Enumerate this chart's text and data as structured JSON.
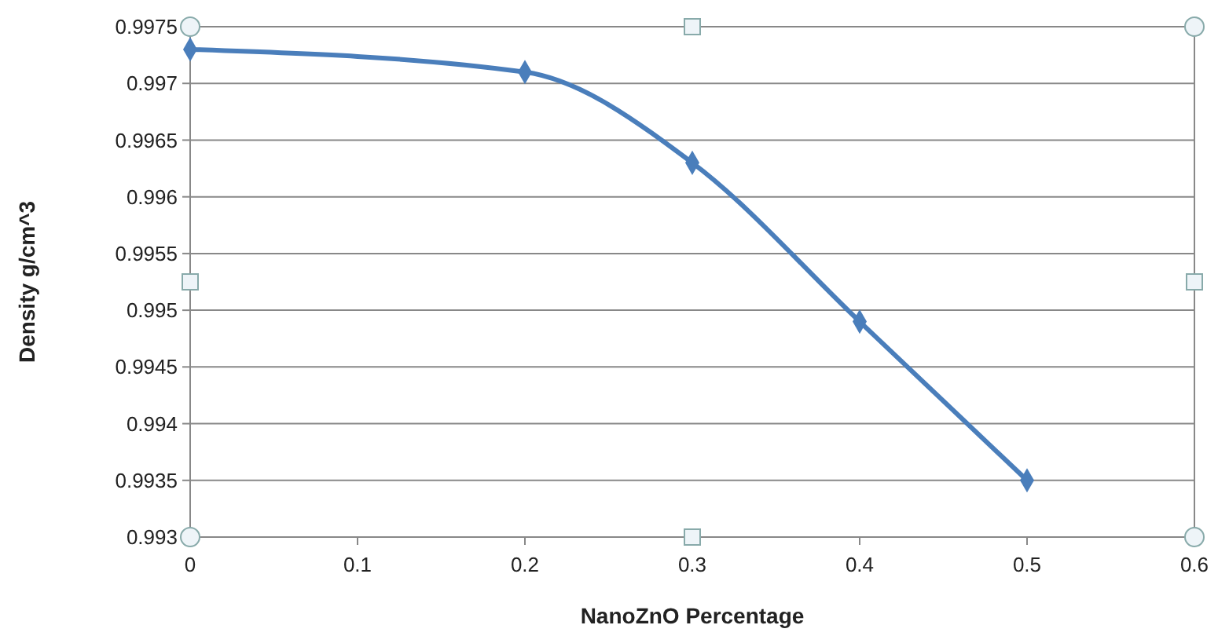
{
  "chart_data": {
    "type": "line",
    "xlabel": "NanoZnO Percentage",
    "ylabel": "Density g/cm^3",
    "x": [
      0,
      0.2,
      0.3,
      0.4,
      0.5
    ],
    "series": [
      {
        "color": "#4a7ebb",
        "values": [
          0.9973,
          0.9971,
          0.9963,
          0.9949,
          0.9935
        ]
      }
    ],
    "xlim": [
      0,
      0.6
    ],
    "xticks": [
      0,
      0.1,
      0.2,
      0.3,
      0.4,
      0.5,
      0.6
    ],
    "ylim": [
      0.993,
      0.9975
    ],
    "yticks": [
      0.993,
      0.9935,
      0.994,
      0.9945,
      0.995,
      0.9955,
      0.996,
      0.9965,
      0.997,
      0.9975
    ],
    "grid": "y",
    "marker": "diamond",
    "line_style": "solid"
  }
}
